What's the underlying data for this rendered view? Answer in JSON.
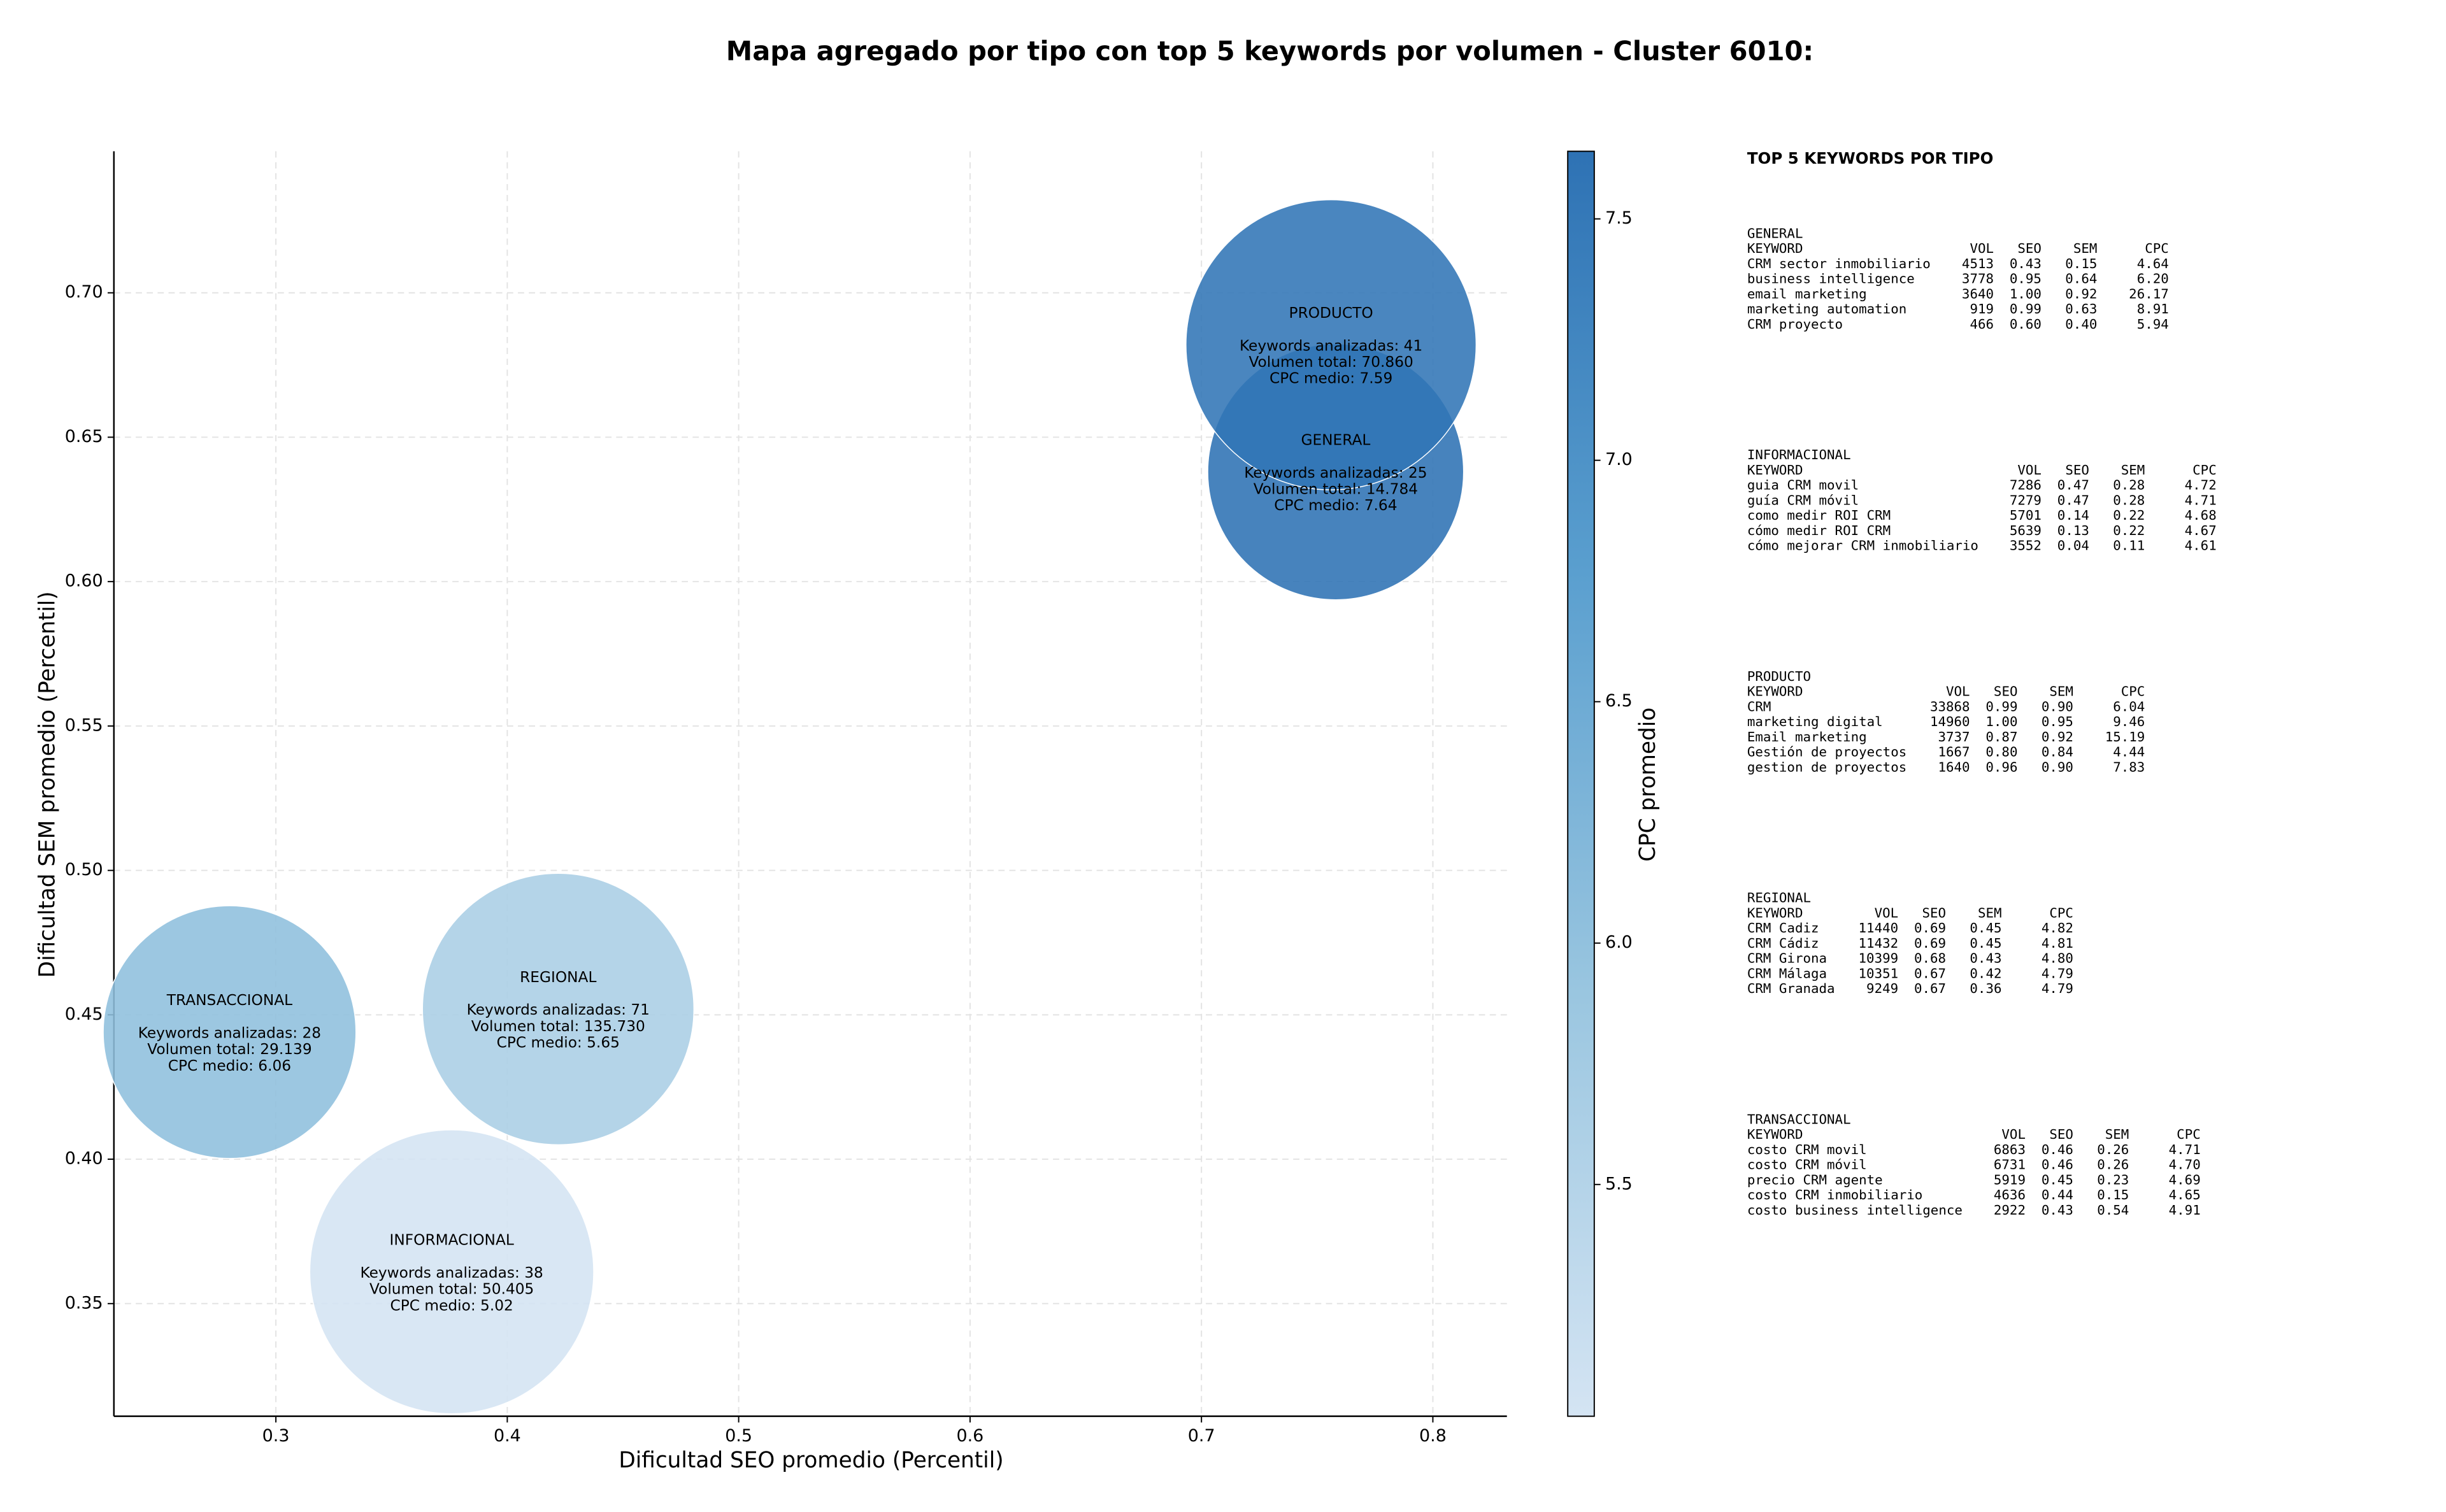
{
  "chart_data": {
    "type": "bubble",
    "title": "Mapa agregado por tipo con top 5 keywords por volumen - Cluster 6010:",
    "xlabel": "Dificultad SEO promedio (Percentil)",
    "ylabel": "Dificultad SEM promedio (Percentil)",
    "categories": [
      "GENERAL",
      "INFORMACIONAL",
      "PRODUCTO",
      "REGIONAL",
      "TRANSACCIONAL"
    ],
    "x": [
      0.758,
      0.376,
      0.756,
      0.422,
      0.28
    ],
    "values": [
      0.638,
      0.361,
      0.682,
      0.452,
      0.444
    ],
    "sizes": [
      82,
      91,
      93,
      87,
      81
    ],
    "color_values": [
      7.64,
      5.02,
      7.59,
      5.65,
      6.06
    ],
    "details": [
      [
        "Keywords analizadas: 25",
        "Volumen total: 14.784",
        "CPC medio: 7.64"
      ],
      [
        "Keywords analizadas: 38",
        "Volumen total: 50.405",
        "CPC medio: 5.02"
      ],
      [
        "Keywords analizadas: 41",
        "Volumen total: 70.860",
        "CPC medio: 7.59"
      ],
      [
        "Keywords analizadas: 71",
        "Volumen total: 135.730",
        "CPC medio: 5.65"
      ],
      [
        "Keywords analizadas: 28",
        "Volumen total: 29.139",
        "CPC medio: 6.06"
      ]
    ],
    "xlim": [
      0.23,
      0.832
    ],
    "ylim": [
      0.311,
      0.749
    ],
    "xticks": [
      0.3,
      0.4,
      0.5,
      0.6,
      0.7,
      0.8
    ],
    "yticks": [
      0.35,
      {
        "value": 0.4,
        "label": "0.40"
      },
      0.45,
      {
        "value": 0.5,
        "label": "0.50"
      },
      0.55,
      {
        "value": 0.6,
        "label": "0.60"
      },
      0.65,
      {
        "value": 0.7,
        "label": "0.70"
      }
    ],
    "grid": true,
    "colorbar": {
      "label": "CPC promedio",
      "lim": [
        5.02,
        7.64
      ],
      "ticks": [
        5.5,
        {
          "value": 6,
          "label": "6.0"
        },
        6.5,
        {
          "value": 7,
          "label": "7.0"
        },
        7.5
      ],
      "colors": [
        "#d4e4f3",
        "#9ac6e0",
        "#5a9fcf",
        "#2e72b4"
      ]
    }
  },
  "keyword_table": {
    "title": "TOP 5 KEYWORDS POR TIPO",
    "columns": [
      "KEYWORD",
      "VOL",
      "SEO",
      "SEM",
      "CPC"
    ],
    "sections": [
      {
        "name": "GENERAL",
        "rows": [
          [
            "CRM sector inmobiliario",
            "4513",
            "0.43",
            "0.15",
            "4.64"
          ],
          [
            "business intelligence",
            "3778",
            "0.95",
            "0.64",
            "6.20"
          ],
          [
            "email marketing",
            "3640",
            "1.00",
            "0.92",
            "26.17"
          ],
          [
            "marketing automation",
            "919",
            "0.99",
            "0.63",
            "8.91"
          ],
          [
            "CRM proyecto",
            "466",
            "0.60",
            "0.40",
            "5.94"
          ]
        ]
      },
      {
        "name": "INFORMACIONAL",
        "rows": [
          [
            "guia CRM movil",
            "7286",
            "0.47",
            "0.28",
            "4.72"
          ],
          [
            "guía CRM móvil",
            "7279",
            "0.47",
            "0.28",
            "4.71"
          ],
          [
            "como medir ROI CRM",
            "5701",
            "0.14",
            "0.22",
            "4.68"
          ],
          [
            "cómo medir ROI CRM",
            "5639",
            "0.13",
            "0.22",
            "4.67"
          ],
          [
            "cómo mejorar CRM inmobiliario",
            "3552",
            "0.04",
            "0.11",
            "4.61"
          ]
        ]
      },
      {
        "name": "PRODUCTO",
        "rows": [
          [
            "CRM",
            "33868",
            "0.99",
            "0.90",
            "6.04"
          ],
          [
            "marketing digital",
            "14960",
            "1.00",
            "0.95",
            "9.46"
          ],
          [
            "Email marketing",
            "3737",
            "0.87",
            "0.92",
            "15.19"
          ],
          [
            "Gestión de proyectos",
            "1667",
            "0.80",
            "0.84",
            "4.44"
          ],
          [
            "gestion de proyectos",
            "1640",
            "0.96",
            "0.90",
            "7.83"
          ]
        ]
      },
      {
        "name": "REGIONAL",
        "rows": [
          [
            "CRM Cadiz",
            "11440",
            "0.69",
            "0.45",
            "4.82"
          ],
          [
            "CRM Cádiz",
            "11432",
            "0.69",
            "0.45",
            "4.81"
          ],
          [
            "CRM Girona",
            "10399",
            "0.68",
            "0.43",
            "4.80"
          ],
          [
            "CRM Málaga",
            "10351",
            "0.67",
            "0.42",
            "4.79"
          ],
          [
            "CRM Granada",
            "9249",
            "0.67",
            "0.36",
            "4.79"
          ]
        ]
      },
      {
        "name": "TRANSACCIONAL",
        "rows": [
          [
            "costo CRM movil",
            "6863",
            "0.46",
            "0.26",
            "4.71"
          ],
          [
            "costo CRM móvil",
            "6731",
            "0.46",
            "0.26",
            "4.70"
          ],
          [
            "precio CRM agente",
            "5919",
            "0.45",
            "0.23",
            "4.69"
          ],
          [
            "costo CRM inmobiliario",
            "4636",
            "0.44",
            "0.15",
            "4.65"
          ],
          [
            "costo business intelligence",
            "2922",
            "0.43",
            "0.54",
            "4.91"
          ]
        ]
      }
    ]
  }
}
